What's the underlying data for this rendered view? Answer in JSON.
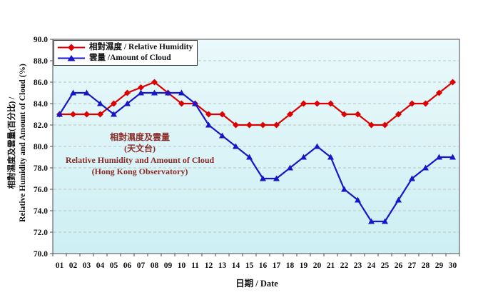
{
  "colors": {
    "humidity_series": "#DD0000",
    "cloud_series": "#1717C9",
    "inner_title_text": "#8B2A26",
    "plot_bg_top": "#EAF9FB",
    "plot_bg_bottom": "#CDEFF3",
    "gridline": "#BCC2BE",
    "axis": "#4A4A4A"
  },
  "legend": {
    "items": [
      {
        "label": "相對濕度 / Relative Humidity",
        "marker": "diamond"
      },
      {
        "label": "雲量 /Amount of Cloud",
        "marker": "triangle"
      }
    ]
  },
  "inner_title": {
    "line1": "相對濕度及雲量",
    "line2": "(天文台)",
    "line3": "Relative Humidity and Amount of Cloud",
    "line4": "(Hong Kong Observatory)"
  },
  "y_axis": {
    "title_line1": "相對濕度及雲量(百分比) /",
    "title_line2": "Relative Humidity and Amount of Cloud (%)"
  },
  "x_axis": {
    "title": "日期 / Date"
  },
  "chart_data": {
    "type": "line",
    "title": "相對濕度及雲量 (天文台) / Relative Humidity and Amount of Cloud (Hong Kong Observatory)",
    "xlabel": "日期 / Date",
    "ylabel": "相對濕度及雲量(百分比) / Relative Humidity and Amount of Cloud (%)",
    "ylim": [
      70.0,
      90.0
    ],
    "y_tick_step": 2.0,
    "grid": "horizontal-dashed",
    "legend_position": "top-left-inside",
    "categories": [
      "01",
      "02",
      "03",
      "04",
      "05",
      "06",
      "07",
      "08",
      "09",
      "10",
      "11",
      "12",
      "13",
      "14",
      "15",
      "16",
      "17",
      "18",
      "19",
      "20",
      "21",
      "22",
      "23",
      "24",
      "25",
      "26",
      "27",
      "28",
      "29",
      "30"
    ],
    "series": [
      {
        "name": "相對濕度 / Relative Humidity",
        "marker": "diamond",
        "color": "#DD0000",
        "values": [
          83,
          83,
          83,
          83,
          84,
          85,
          85.5,
          86,
          85,
          84,
          84,
          83,
          83,
          82,
          82,
          82,
          82,
          83,
          84,
          84,
          84,
          83,
          83,
          82,
          82,
          83,
          84,
          84,
          85,
          86
        ]
      },
      {
        "name": "雲量 /Amount of Cloud",
        "marker": "triangle-up",
        "color": "#1717C9",
        "values": [
          83,
          85,
          85,
          84,
          83,
          84,
          85,
          85,
          85,
          85,
          84,
          82,
          81,
          80,
          79,
          77,
          77,
          78,
          79,
          80,
          79,
          76,
          75,
          73,
          73,
          75,
          77,
          78,
          79,
          79
        ]
      }
    ]
  }
}
